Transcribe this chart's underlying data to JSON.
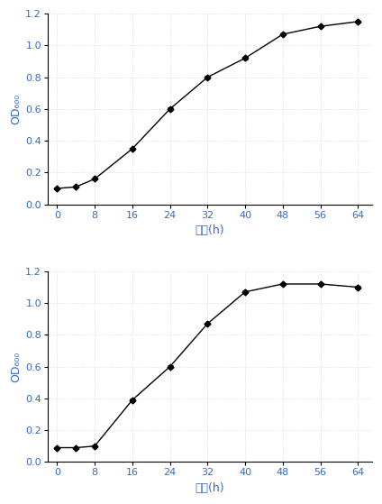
{
  "chart1": {
    "x": [
      0,
      4,
      8,
      16,
      24,
      32,
      40,
      48,
      56,
      64
    ],
    "y": [
      0.1,
      0.11,
      0.16,
      0.35,
      0.6,
      0.8,
      0.92,
      1.07,
      1.12,
      1.15
    ],
    "yerr": [
      0.005,
      0.003,
      0.005,
      0.008,
      0.008,
      0.008,
      0.008,
      0.008,
      0.006,
      0.006
    ],
    "xlabel": "时间(h)",
    "ylabel": "OD₆₀₀",
    "ylim": [
      0.0,
      1.2
    ],
    "ytick_labels": [
      "0.0",
      "0.2",
      "0.4",
      "0.6",
      "0.8",
      "1.0",
      "1.2"
    ],
    "yticks": [
      0.0,
      0.2,
      0.4,
      0.6,
      0.8,
      1.0,
      1.2
    ],
    "xticks": [
      0,
      8,
      16,
      24,
      32,
      40,
      48,
      56,
      64
    ]
  },
  "chart2": {
    "x": [
      0,
      4,
      8,
      16,
      24,
      32,
      40,
      48,
      56,
      64
    ],
    "y": [
      0.09,
      0.09,
      0.1,
      0.39,
      0.6,
      0.87,
      1.07,
      1.12,
      1.12,
      1.1
    ],
    "yerr": [
      0.005,
      0.003,
      0.003,
      0.008,
      0.008,
      0.008,
      0.008,
      0.006,
      0.006,
      0.006
    ],
    "xlabel": "时间(h)",
    "ylabel": "OD₆₀₀",
    "ylim": [
      0.0,
      1.2
    ],
    "ytick_labels": [
      "0.0",
      "0.2",
      "0.4",
      "0.6",
      "0.8",
      "1.0",
      "1.2"
    ],
    "yticks": [
      0.0,
      0.2,
      0.4,
      0.6,
      0.8,
      1.0,
      1.2
    ],
    "xticks": [
      0,
      8,
      16,
      24,
      32,
      40,
      48,
      56,
      64
    ]
  },
  "line_color": "#000000",
  "marker": "D",
  "markersize": 3.5,
  "linewidth": 1.0,
  "tick_label_color": "#3a6abf",
  "axis_label_color": "#3a6abf",
  "grid_color": "#d0d8e8",
  "grid_linestyle": ":",
  "background_color": "#ffffff",
  "figsize": [
    4.24,
    5.59
  ],
  "dpi": 100
}
